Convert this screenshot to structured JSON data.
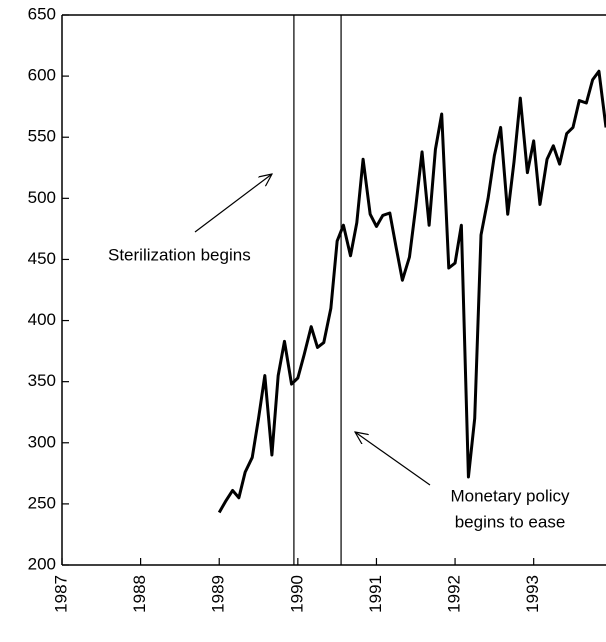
{
  "chart_data": {
    "type": "line",
    "x": [
      1989.0,
      1989.08,
      1989.17,
      1989.25,
      1989.33,
      1989.42,
      1989.5,
      1989.58,
      1989.67,
      1989.75,
      1989.83,
      1989.92,
      1990.0,
      1990.08,
      1990.17,
      1990.25,
      1990.33,
      1990.42,
      1990.5,
      1990.58,
      1990.67,
      1990.75,
      1990.83,
      1990.92,
      1991.0,
      1991.08,
      1991.17,
      1991.25,
      1991.33,
      1991.42,
      1991.5,
      1991.58,
      1991.67,
      1991.75,
      1991.83,
      1991.92,
      1992.0,
      1992.08,
      1992.17,
      1992.25,
      1992.33,
      1992.42,
      1992.5,
      1992.58,
      1992.67,
      1992.75,
      1992.83,
      1992.92,
      1993.0,
      1993.08,
      1993.17,
      1993.25,
      1993.33,
      1993.42,
      1993.5,
      1993.58,
      1993.67,
      1993.75,
      1993.83,
      1993.92
    ],
    "series": [
      {
        "color": "#000000",
        "values": [
          243,
          252,
          261,
          255,
          276,
          288,
          320,
          355,
          290,
          355,
          383,
          348,
          353,
          372,
          395,
          378,
          382,
          410,
          465,
          478,
          453,
          480,
          532,
          487,
          477,
          486,
          488,
          460,
          433,
          452,
          493,
          538,
          478,
          540,
          569,
          443,
          447,
          478,
          272,
          320,
          470,
          500,
          535,
          558,
          487,
          530,
          582,
          521,
          547,
          495,
          532,
          543,
          528,
          553,
          558,
          580,
          578,
          597,
          604,
          558
        ]
      }
    ],
    "xlim": [
      1987,
      1993.92
    ],
    "ylim": [
      200,
      650
    ],
    "xticks": [
      1987,
      1988,
      1989,
      1990,
      1991,
      1992,
      1993
    ],
    "yticks": [
      200,
      250,
      300,
      350,
      400,
      450,
      500,
      550,
      600,
      650
    ],
    "vlines": [
      1989.95,
      1990.55
    ],
    "annotations": [
      {
        "lines": [
          "Sterilization begins"
        ]
      },
      {
        "lines": [
          "Monetary policy",
          "begins to ease"
        ]
      }
    ]
  }
}
